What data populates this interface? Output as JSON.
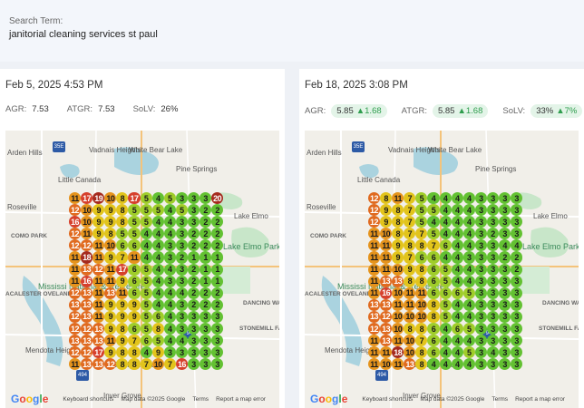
{
  "search": {
    "label": "Search Term:",
    "value": "janitorial cleaning services st paul"
  },
  "panels": [
    {
      "date": "Feb 5, 2025 4:53 PM",
      "agr_label": "AGR:",
      "agr": "7.53",
      "atgr_label": "ATGR:",
      "atgr": "7.53",
      "solv_label": "SoLV:",
      "solv": "26%",
      "grid": [
        [
          11,
          17,
          19,
          10,
          8,
          17,
          5,
          4,
          5,
          3,
          3,
          3,
          20
        ],
        [
          12,
          10,
          9,
          9,
          8,
          5,
          5,
          5,
          4,
          5,
          3,
          2,
          2
        ],
        [
          16,
          10,
          9,
          9,
          8,
          5,
          5,
          4,
          4,
          3,
          3,
          2,
          2
        ],
        [
          12,
          11,
          9,
          8,
          5,
          5,
          4,
          4,
          4,
          3,
          2,
          2,
          2
        ],
        [
          12,
          12,
          11,
          10,
          6,
          6,
          4,
          4,
          3,
          3,
          2,
          2,
          2
        ],
        [
          11,
          18,
          11,
          9,
          7,
          11,
          4,
          4,
          3,
          2,
          1,
          1,
          1
        ],
        [
          11,
          13,
          12,
          11,
          17,
          6,
          5,
          4,
          4,
          3,
          2,
          1,
          1
        ],
        [
          11,
          16,
          11,
          11,
          9,
          6,
          5,
          4,
          3,
          3,
          2,
          1,
          1
        ],
        [
          12,
          13,
          11,
          13,
          11,
          6,
          5,
          4,
          4,
          4,
          2,
          2,
          2
        ],
        [
          13,
          13,
          11,
          9,
          9,
          9,
          5,
          4,
          4,
          3,
          2,
          2,
          2
        ],
        [
          12,
          13,
          11,
          9,
          9,
          9,
          5,
          6,
          4,
          3,
          3,
          3,
          3
        ],
        [
          12,
          12,
          13,
          9,
          8,
          6,
          5,
          8,
          4,
          3,
          3,
          3,
          3
        ],
        [
          13,
          13,
          13,
          11,
          9,
          7,
          6,
          5,
          4,
          4,
          3,
          3,
          3
        ],
        [
          12,
          12,
          17,
          9,
          8,
          8,
          4,
          9,
          3,
          3,
          3,
          3,
          3
        ],
        [
          11,
          13,
          13,
          12,
          8,
          8,
          7,
          10,
          7,
          16,
          3,
          3,
          3
        ]
      ],
      "footer": {
        "shortcuts": "Keyboard shortcuts",
        "mapdata": "Map data ©2025 Google",
        "terms": "Terms",
        "report": "Report a map error"
      }
    },
    {
      "date": "Feb 18, 2025 3:08 PM",
      "agr_label": "AGR:",
      "agr": "5.85",
      "agr_delta": "1.68",
      "atgr_label": "ATGR:",
      "atgr": "5.85",
      "atgr_delta": "1.68",
      "solv_label": "SoLV:",
      "solv": "33%",
      "solv_delta": "7%",
      "grid": [
        [
          12,
          8,
          11,
          7,
          5,
          4,
          4,
          4,
          4,
          3,
          3,
          3,
          3
        ],
        [
          12,
          9,
          8,
          7,
          5,
          5,
          4,
          4,
          4,
          3,
          3,
          3,
          3
        ],
        [
          12,
          9,
          8,
          7,
          5,
          4,
          4,
          4,
          4,
          3,
          3,
          3,
          3
        ],
        [
          11,
          10,
          8,
          7,
          7,
          5,
          4,
          4,
          4,
          3,
          2,
          3,
          3
        ],
        [
          11,
          11,
          9,
          8,
          8,
          7,
          6,
          4,
          4,
          3,
          3,
          4,
          4
        ],
        [
          11,
          11,
          9,
          7,
          6,
          6,
          4,
          4,
          3,
          3,
          3,
          2,
          2
        ],
        [
          11,
          11,
          10,
          9,
          8,
          6,
          5,
          4,
          4,
          3,
          3,
          3,
          2
        ],
        [
          11,
          13,
          13,
          8,
          8,
          6,
          5,
          4,
          4,
          3,
          3,
          3,
          3
        ],
        [
          11,
          16,
          10,
          11,
          11,
          6,
          6,
          6,
          5,
          3,
          3,
          3,
          3
        ],
        [
          13,
          13,
          11,
          11,
          10,
          8,
          5,
          4,
          4,
          3,
          3,
          3,
          3
        ],
        [
          13,
          12,
          10,
          10,
          10,
          8,
          5,
          4,
          4,
          3,
          3,
          3,
          3
        ],
        [
          12,
          13,
          10,
          8,
          8,
          6,
          4,
          6,
          5,
          3,
          3,
          3,
          3
        ],
        [
          11,
          13,
          11,
          10,
          7,
          6,
          4,
          4,
          4,
          3,
          3,
          3,
          3
        ],
        [
          11,
          11,
          18,
          10,
          8,
          6,
          4,
          4,
          5,
          3,
          4,
          3,
          3
        ],
        [
          11,
          10,
          11,
          13,
          8,
          4,
          4,
          4,
          4,
          3,
          3,
          3,
          3
        ]
      ],
      "footer": {
        "shortcuts": "Keyboard shortcuts",
        "mapdata": "Map data ©2025 Google",
        "terms": "Terms",
        "report": "Report a map error"
      }
    }
  ],
  "map_labels": {
    "arden_hills": "Arden Hills",
    "vadnais": "Vadnais\nHeights",
    "white_bear": "White\nBear Lake",
    "pine_springs": "Pine Springs",
    "little_canada": "Little Canada",
    "roseville": "Roseville",
    "lake_elmo": "Lake Elmo",
    "como_park": "COMO PARK",
    "lake_elmo_park": "Lake Elmo\nPark Reserve",
    "mississippi": "Mississi\nNational\n& Recre\nArea",
    "macalester": "ACALESTER\nOVELAND",
    "dancing_waters": "DANCING\nWATERS",
    "stonemill": "STONEMILL\nFARMS",
    "mendota": "Mendota\nHeights",
    "south_st_paul": "South St Paul",
    "inver_grove": "Inver Grove"
  },
  "colors": {
    "green": "#63c132",
    "yellowgreen": "#9fcd2a",
    "yellow": "#e2c41c",
    "orange": "#e5931c",
    "darkorange": "#e06a1f",
    "red": "#d6402c",
    "darkred": "#a52a1e"
  }
}
